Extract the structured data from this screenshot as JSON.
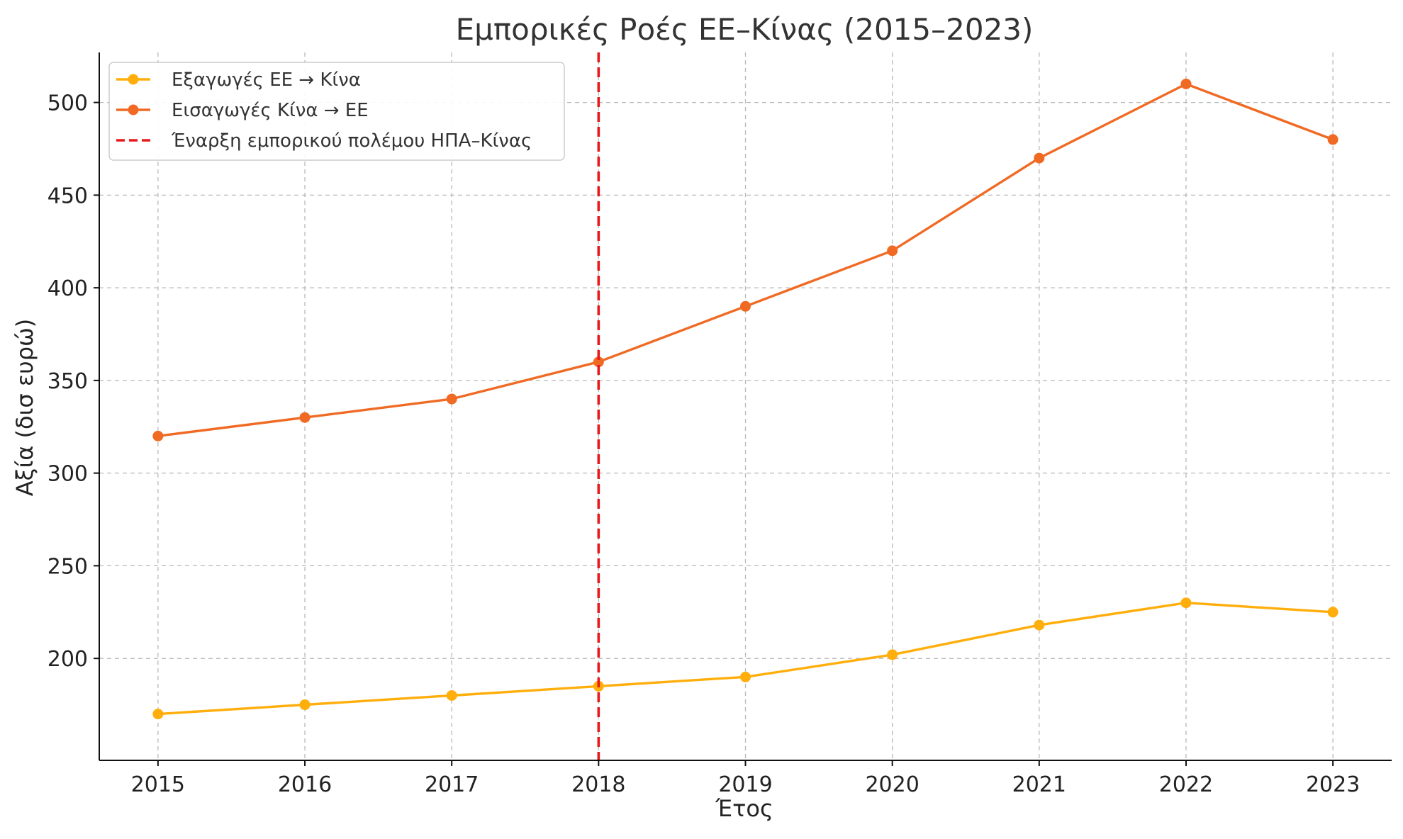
{
  "chart_data": {
    "type": "line",
    "title": "Εμπορικές Ροές ΕΕ–Κίνας (2015–2023)",
    "xlabel": "Έτος",
    "ylabel": "Αξία (δισ ευρώ)",
    "x": [
      2015,
      2016,
      2017,
      2018,
      2019,
      2020,
      2021,
      2022,
      2023
    ],
    "x_tick_labels": [
      "2015",
      "2016",
      "2017",
      "2018",
      "2019",
      "2020",
      "2021",
      "2022",
      "2023"
    ],
    "xlim": [
      2014.6,
      2023.4
    ],
    "ylim": [
      145,
      527
    ],
    "y_ticks": [
      200,
      250,
      300,
      350,
      400,
      450,
      500
    ],
    "y_tick_labels": [
      "200",
      "250",
      "300",
      "350",
      "400",
      "450",
      "500"
    ],
    "grid": true,
    "legend_position": "top-left",
    "series": [
      {
        "name": "Εξαγωγές ΕΕ → Κίνα",
        "color": "#FFAE0C",
        "values": [
          170,
          175,
          180,
          185,
          190,
          202,
          218,
          230,
          225
        ]
      },
      {
        "name": "Εισαγωγές Κίνα → ΕΕ",
        "color": "#F06A24",
        "values": [
          320,
          330,
          340,
          360,
          390,
          420,
          470,
          510,
          480
        ]
      }
    ],
    "annotations": [
      {
        "type": "vertical-line",
        "x": 2018,
        "style": "dashed",
        "color": "#E8191C",
        "label": "Έναρξη εμπορικού πολέμου ΗΠΑ–Κίνας"
      }
    ]
  }
}
